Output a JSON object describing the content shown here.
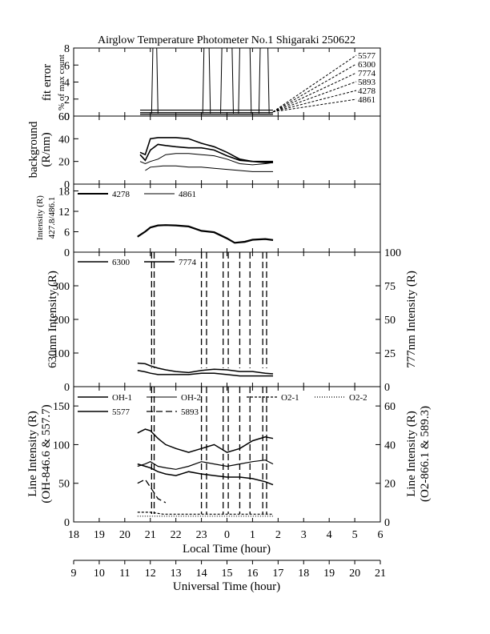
{
  "title": "Airglow Temperature Photometer No.1  Shigaraki  250622",
  "chart_data": [
    {
      "panel": "fit-error",
      "type": "line",
      "ylabel": [
        "fit error",
        "% of max count"
      ],
      "ylim": [
        0,
        8
      ],
      "yticks": [
        "0",
        "2",
        "4",
        "6",
        "8"
      ],
      "labels": [
        "5577",
        "6300",
        "7774",
        "5893",
        "4278",
        "4861"
      ]
    },
    {
      "panel": "background",
      "type": "line",
      "ylabel": [
        "background",
        "(R/nm)"
      ],
      "ylim": [
        0,
        60
      ],
      "yticks": [
        "0",
        "20",
        "40",
        "60"
      ],
      "series": [
        {
          "x": [
            20.6,
            20.8,
            21.0,
            21.3,
            21.6,
            22.0,
            22.5,
            23.0,
            23.5,
            24.0,
            24.5,
            25.0,
            25.5,
            25.8
          ],
          "values": [
            28,
            26,
            40,
            41,
            41,
            41,
            40,
            36,
            33,
            28,
            22,
            20,
            20,
            20
          ]
        },
        {
          "x": [
            20.6,
            20.8,
            21.0,
            21.3,
            21.6,
            22.0,
            22.5,
            23.0,
            23.5,
            24.0,
            24.5,
            25.0,
            25.5,
            25.8
          ],
          "values": [
            26,
            21,
            30,
            35,
            34,
            33,
            32,
            32,
            30,
            25,
            21,
            20,
            19,
            19
          ]
        },
        {
          "x": [
            20.6,
            20.8,
            21.0,
            21.3,
            21.6,
            22.0,
            22.5,
            23.0,
            23.5,
            24.0,
            24.5,
            25.0,
            25.5,
            25.8
          ],
          "values": [
            20,
            18,
            20,
            22,
            26,
            27,
            27,
            26,
            25,
            22,
            18,
            17,
            18,
            19
          ]
        },
        {
          "x": [
            20.8,
            21.0,
            21.5,
            22.0,
            22.5,
            23.0,
            23.5,
            24.0,
            24.5,
            25.0,
            25.5,
            25.8
          ],
          "values": [
            12,
            15,
            16,
            16,
            15,
            15,
            14,
            13,
            12,
            11,
            11,
            11
          ]
        }
      ]
    },
    {
      "panel": "intensity-427-486",
      "type": "line",
      "ylabel": [
        "Intensity (R)",
        "427.8/486.1"
      ],
      "ylim": [
        0,
        20
      ],
      "yticks": [
        "0",
        "6",
        "12",
        "18"
      ],
      "legend": [
        "4278",
        "4861"
      ],
      "series": [
        {
          "name": "4278",
          "x": [
            20.5,
            20.8,
            21.0,
            21.3,
            21.6,
            22.0,
            22.5,
            23.0,
            23.5,
            24.0,
            24.3,
            24.7,
            25.0,
            25.5,
            25.8
          ],
          "values": [
            4.5,
            6.0,
            7.2,
            7.8,
            7.9,
            7.8,
            7.5,
            6.2,
            5.8,
            4.0,
            2.7,
            3.0,
            3.6,
            3.8,
            3.5
          ]
        },
        {
          "name": "4861",
          "x": [
            20.5,
            20.8,
            21.0,
            21.3,
            21.6,
            22.0,
            22.5,
            23.0,
            23.5,
            24.0,
            24.3,
            24.7,
            25.0,
            25.5,
            25.8
          ],
          "values": [
            4.6,
            6.1,
            7.3,
            7.9,
            8.0,
            7.9,
            7.6,
            6.3,
            5.9,
            4.1,
            2.8,
            3.1,
            3.7,
            3.9,
            3.6
          ]
        }
      ]
    },
    {
      "panel": "630-777",
      "type": "line",
      "ylabel": "630nm Intensity (R)",
      "ylabel_right": "777nm Intensity (R)",
      "ylim": [
        0,
        400
      ],
      "ylim_right": [
        0,
        100
      ],
      "yticks": [
        "0",
        "100",
        "200",
        "300"
      ],
      "yticks_right": [
        "0",
        "25",
        "50",
        "75",
        "100"
      ],
      "legend": [
        "6300",
        "7774"
      ],
      "series": [
        {
          "name": "6300",
          "x": [
            20.5,
            20.8,
            21.0,
            21.3,
            21.6,
            22.0,
            22.5,
            23.0,
            23.5,
            24.0,
            24.5,
            25.0,
            25.5,
            25.8
          ],
          "values": [
            70,
            68,
            62,
            55,
            50,
            45,
            42,
            48,
            52,
            50,
            45,
            45,
            40,
            38
          ]
        },
        {
          "name": "7774",
          "x": [
            20.5,
            20.8,
            21.0,
            21.3,
            21.6,
            22.0,
            22.5,
            23.0,
            23.5,
            24.0,
            24.5,
            25.0,
            25.5,
            25.8
          ],
          "values": [
            12,
            11,
            10,
            9,
            9,
            9,
            9,
            10,
            10,
            9,
            8,
            8,
            8,
            8
          ]
        }
      ]
    },
    {
      "panel": "line-intensity",
      "type": "line",
      "ylabel": [
        "Line Intensity (R)",
        "(OH-846.6 & 557.7)"
      ],
      "ylabel_right": [
        "Line Intensity (R)",
        "(O2-866.1 & 589.3)"
      ],
      "ylim": [
        0,
        175
      ],
      "ylim_right": [
        0,
        70
      ],
      "yticks": [
        "0",
        "50",
        "100",
        "150"
      ],
      "yticks_right": [
        "0",
        "20",
        "40",
        "60"
      ],
      "legend": [
        "OH-1",
        "OH-2",
        "O2-1",
        "O2-2",
        "5577",
        "5893"
      ],
      "series": [
        {
          "name": "OH-1",
          "x": [
            20.5,
            20.8,
            21.0,
            21.3,
            21.6,
            22.0,
            22.5,
            23.0,
            23.5,
            24.0,
            24.5,
            25.0,
            25.5,
            25.8
          ],
          "values": [
            75,
            72,
            70,
            65,
            62,
            60,
            65,
            62,
            60,
            58,
            58,
            56,
            52,
            48
          ]
        },
        {
          "name": "OH-2",
          "x": [
            20.5,
            20.8,
            21.0,
            21.3,
            21.6,
            22.0,
            22.5,
            23.0,
            23.5,
            24.0,
            24.5,
            25.0,
            25.5,
            25.8
          ],
          "values": [
            72,
            75,
            78,
            72,
            70,
            68,
            72,
            78,
            75,
            72,
            75,
            78,
            80,
            75
          ]
        },
        {
          "name": "5577",
          "x": [
            20.5,
            20.8,
            21.0,
            21.3,
            21.6,
            22.0,
            22.5,
            23.0,
            23.5,
            24.0,
            24.5,
            25.0,
            25.5,
            25.8
          ],
          "values": [
            115,
            120,
            118,
            108,
            100,
            95,
            90,
            95,
            100,
            90,
            95,
            105,
            110,
            108
          ]
        },
        {
          "name": "5893",
          "x": [
            20.5,
            20.8,
            21.0,
            21.3,
            21.6
          ],
          "values": [
            50,
            55,
            45,
            30,
            25
          ]
        },
        {
          "name": "O2-1",
          "x": [
            20.5,
            21.0,
            21.5,
            22.0,
            22.5,
            23.0,
            23.5,
            24.0,
            24.5,
            25.0,
            25.5,
            25.8
          ],
          "values": [
            5,
            5,
            4,
            4,
            4,
            4,
            4,
            4,
            4,
            4,
            4,
            4
          ]
        },
        {
          "name": "O2-2",
          "x": [
            20.5,
            21.0,
            21.5,
            22.0,
            22.5,
            23.0,
            23.5,
            24.0,
            24.5,
            25.0,
            25.5,
            25.8
          ],
          "values": [
            3,
            3,
            3,
            3,
            3,
            3,
            3,
            3,
            3,
            3,
            3,
            3
          ]
        }
      ]
    }
  ],
  "xaxis_local": {
    "label": "Local Time (hour)",
    "ticks": [
      "18",
      "19",
      "20",
      "21",
      "22",
      "23",
      "0",
      "1",
      "2",
      "3",
      "4",
      "5",
      "6"
    ],
    "range": [
      18,
      30
    ]
  },
  "xaxis_ut": {
    "label": "Universal Time (hour)",
    "ticks": [
      "9",
      "10",
      "11",
      "12",
      "13",
      "14",
      "15",
      "16",
      "17",
      "18",
      "19",
      "20",
      "21"
    ],
    "range": [
      9,
      21
    ]
  }
}
